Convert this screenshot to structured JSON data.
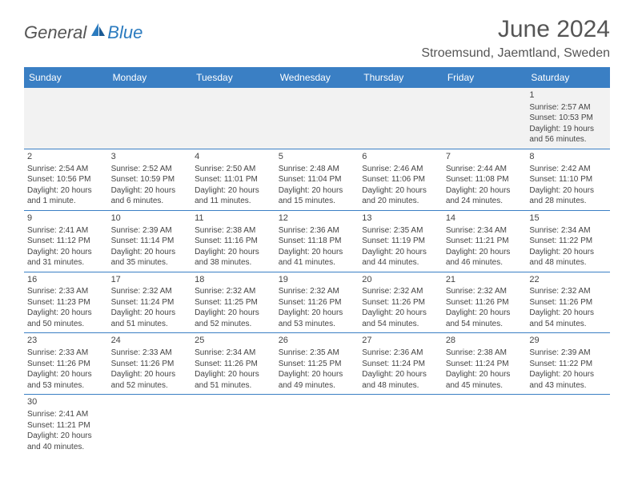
{
  "logo": {
    "text1": "General",
    "text2": "Blue"
  },
  "title": "June 2024",
  "location": "Stroemsund, Jaemtland, Sweden",
  "colors": {
    "header_bg": "#3a7fc4",
    "header_text": "#ffffff",
    "body_text": "#444444",
    "title_text": "#555555",
    "logo_blue": "#2b7bbf",
    "logo_gray": "#555555",
    "empty_bg": "#f2f2f2",
    "border": "#3a7fc4",
    "page_bg": "#ffffff"
  },
  "day_headers": [
    "Sunday",
    "Monday",
    "Tuesday",
    "Wednesday",
    "Thursday",
    "Friday",
    "Saturday"
  ],
  "weeks": [
    [
      null,
      null,
      null,
      null,
      null,
      null,
      {
        "n": "1",
        "sr": "Sunrise: 2:57 AM",
        "ss": "Sunset: 10:53 PM",
        "dl": "Daylight: 19 hours and 56 minutes."
      }
    ],
    [
      {
        "n": "2",
        "sr": "Sunrise: 2:54 AM",
        "ss": "Sunset: 10:56 PM",
        "dl": "Daylight: 20 hours and 1 minute."
      },
      {
        "n": "3",
        "sr": "Sunrise: 2:52 AM",
        "ss": "Sunset: 10:59 PM",
        "dl": "Daylight: 20 hours and 6 minutes."
      },
      {
        "n": "4",
        "sr": "Sunrise: 2:50 AM",
        "ss": "Sunset: 11:01 PM",
        "dl": "Daylight: 20 hours and 11 minutes."
      },
      {
        "n": "5",
        "sr": "Sunrise: 2:48 AM",
        "ss": "Sunset: 11:04 PM",
        "dl": "Daylight: 20 hours and 15 minutes."
      },
      {
        "n": "6",
        "sr": "Sunrise: 2:46 AM",
        "ss": "Sunset: 11:06 PM",
        "dl": "Daylight: 20 hours and 20 minutes."
      },
      {
        "n": "7",
        "sr": "Sunrise: 2:44 AM",
        "ss": "Sunset: 11:08 PM",
        "dl": "Daylight: 20 hours and 24 minutes."
      },
      {
        "n": "8",
        "sr": "Sunrise: 2:42 AM",
        "ss": "Sunset: 11:10 PM",
        "dl": "Daylight: 20 hours and 28 minutes."
      }
    ],
    [
      {
        "n": "9",
        "sr": "Sunrise: 2:41 AM",
        "ss": "Sunset: 11:12 PM",
        "dl": "Daylight: 20 hours and 31 minutes."
      },
      {
        "n": "10",
        "sr": "Sunrise: 2:39 AM",
        "ss": "Sunset: 11:14 PM",
        "dl": "Daylight: 20 hours and 35 minutes."
      },
      {
        "n": "11",
        "sr": "Sunrise: 2:38 AM",
        "ss": "Sunset: 11:16 PM",
        "dl": "Daylight: 20 hours and 38 minutes."
      },
      {
        "n": "12",
        "sr": "Sunrise: 2:36 AM",
        "ss": "Sunset: 11:18 PM",
        "dl": "Daylight: 20 hours and 41 minutes."
      },
      {
        "n": "13",
        "sr": "Sunrise: 2:35 AM",
        "ss": "Sunset: 11:19 PM",
        "dl": "Daylight: 20 hours and 44 minutes."
      },
      {
        "n": "14",
        "sr": "Sunrise: 2:34 AM",
        "ss": "Sunset: 11:21 PM",
        "dl": "Daylight: 20 hours and 46 minutes."
      },
      {
        "n": "15",
        "sr": "Sunrise: 2:34 AM",
        "ss": "Sunset: 11:22 PM",
        "dl": "Daylight: 20 hours and 48 minutes."
      }
    ],
    [
      {
        "n": "16",
        "sr": "Sunrise: 2:33 AM",
        "ss": "Sunset: 11:23 PM",
        "dl": "Daylight: 20 hours and 50 minutes."
      },
      {
        "n": "17",
        "sr": "Sunrise: 2:32 AM",
        "ss": "Sunset: 11:24 PM",
        "dl": "Daylight: 20 hours and 51 minutes."
      },
      {
        "n": "18",
        "sr": "Sunrise: 2:32 AM",
        "ss": "Sunset: 11:25 PM",
        "dl": "Daylight: 20 hours and 52 minutes."
      },
      {
        "n": "19",
        "sr": "Sunrise: 2:32 AM",
        "ss": "Sunset: 11:26 PM",
        "dl": "Daylight: 20 hours and 53 minutes."
      },
      {
        "n": "20",
        "sr": "Sunrise: 2:32 AM",
        "ss": "Sunset: 11:26 PM",
        "dl": "Daylight: 20 hours and 54 minutes."
      },
      {
        "n": "21",
        "sr": "Sunrise: 2:32 AM",
        "ss": "Sunset: 11:26 PM",
        "dl": "Daylight: 20 hours and 54 minutes."
      },
      {
        "n": "22",
        "sr": "Sunrise: 2:32 AM",
        "ss": "Sunset: 11:26 PM",
        "dl": "Daylight: 20 hours and 54 minutes."
      }
    ],
    [
      {
        "n": "23",
        "sr": "Sunrise: 2:33 AM",
        "ss": "Sunset: 11:26 PM",
        "dl": "Daylight: 20 hours and 53 minutes."
      },
      {
        "n": "24",
        "sr": "Sunrise: 2:33 AM",
        "ss": "Sunset: 11:26 PM",
        "dl": "Daylight: 20 hours and 52 minutes."
      },
      {
        "n": "25",
        "sr": "Sunrise: 2:34 AM",
        "ss": "Sunset: 11:26 PM",
        "dl": "Daylight: 20 hours and 51 minutes."
      },
      {
        "n": "26",
        "sr": "Sunrise: 2:35 AM",
        "ss": "Sunset: 11:25 PM",
        "dl": "Daylight: 20 hours and 49 minutes."
      },
      {
        "n": "27",
        "sr": "Sunrise: 2:36 AM",
        "ss": "Sunset: 11:24 PM",
        "dl": "Daylight: 20 hours and 48 minutes."
      },
      {
        "n": "28",
        "sr": "Sunrise: 2:38 AM",
        "ss": "Sunset: 11:24 PM",
        "dl": "Daylight: 20 hours and 45 minutes."
      },
      {
        "n": "29",
        "sr": "Sunrise: 2:39 AM",
        "ss": "Sunset: 11:22 PM",
        "dl": "Daylight: 20 hours and 43 minutes."
      }
    ],
    [
      {
        "n": "30",
        "sr": "Sunrise: 2:41 AM",
        "ss": "Sunset: 11:21 PM",
        "dl": "Daylight: 20 hours and 40 minutes."
      },
      null,
      null,
      null,
      null,
      null,
      null
    ]
  ]
}
